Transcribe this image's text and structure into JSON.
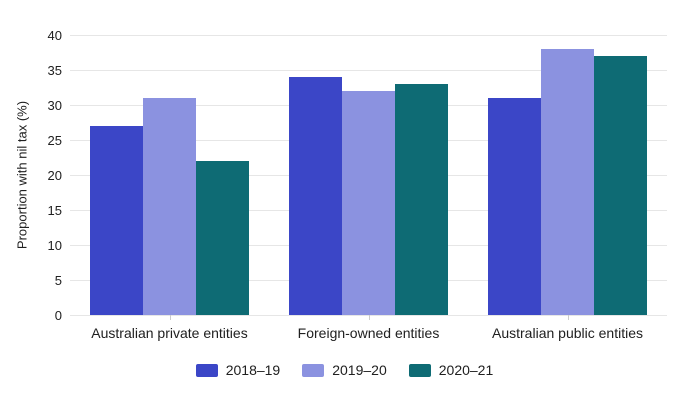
{
  "chart_data": {
    "type": "bar",
    "categories": [
      "Australian private entities",
      "Foreign-owned entities",
      "Australian public entities"
    ],
    "series": [
      {
        "name": "2018–19",
        "color": "#3B46C7",
        "values": [
          27,
          34,
          31
        ]
      },
      {
        "name": "2019–20",
        "color": "#8B92E0",
        "values": [
          31,
          32,
          38
        ]
      },
      {
        "name": "2020–21",
        "color": "#0E6B74",
        "values": [
          22,
          33,
          37
        ]
      }
    ],
    "title": "",
    "xlabel": "",
    "ylabel": "Proportion with nil tax (%)",
    "ylim": [
      0,
      40
    ],
    "ytick_step": 5,
    "ytick_labels": [
      "0",
      "5",
      "10",
      "15",
      "20",
      "25",
      "30",
      "35",
      "40"
    ],
    "grid": true,
    "legend_position": "bottom"
  },
  "colors": {
    "background": "#ffffff",
    "gridline": "#e6e6e6",
    "tick": "#cccccc",
    "text": "#202020",
    "series_2018_19": "#3B46C7",
    "series_2019_20": "#8B92E0",
    "series_2020_21": "#0E6B74"
  }
}
